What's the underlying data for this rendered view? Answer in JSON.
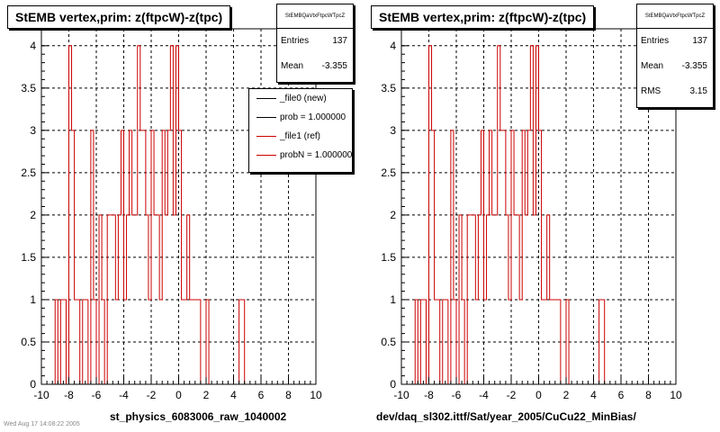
{
  "panels": [
    {
      "title": "StEMB  vertex,prim: z(ftpcW)-z(tpc)",
      "stats": {
        "name": "StEMBQaVtxFtpcWTpcZ",
        "entries_label": "Entries",
        "entries": "137",
        "mean_label": "Mean",
        "mean": "-3.355"
      },
      "legend": {
        "entries": [
          {
            "label": "_file0 (new)",
            "color": "#000000"
          },
          {
            "label": "prob = 1.000000",
            "color": "#000000"
          },
          {
            "label": "_file1 (ref)",
            "color": "#cc0000"
          },
          {
            "label": "probN = 1.000000",
            "color": "#cc0000"
          }
        ]
      },
      "xlabel": "st_physics_6083006_raw_1040002"
    },
    {
      "title": "StEMB  vertex,prim: z(ftpcW)-z(tpc)",
      "stats": {
        "name": "StEMBQaVtxFtpcWTpcZ",
        "entries_label": "Entries",
        "entries": "137",
        "mean_label": "Mean",
        "mean": "-3.355",
        "rms_label": "RMS",
        "rms": "3.15"
      },
      "xlabel": "dev/daq_sl302.ittf/Sat/year_2005/CuCu22_MinBias/"
    }
  ],
  "footer_scribble": "Wed Aug 17 14:08:22 2005",
  "chart_data": [
    {
      "type": "histogram",
      "title": "StEMB  vertex,prim: z(ftpcW)-z(tpc)",
      "xlabel": "st_physics_6083006_raw_1040002",
      "xlim": [
        -10,
        10
      ],
      "ylim": [
        0,
        4.2
      ],
      "x_ticks": [
        -10,
        -8,
        -6,
        -4,
        -2,
        0,
        2,
        4,
        6,
        8,
        10
      ],
      "y_ticks": [
        0,
        0.5,
        1,
        1.5,
        2,
        2.5,
        3,
        3.5,
        4
      ],
      "y_tick_labels": [
        "0",
        "0.5",
        "1",
        "1.5",
        "2",
        "2.5",
        "3",
        "3.5",
        "4"
      ],
      "grid": true,
      "bin_width": 0.2,
      "bin_starts": [
        -10.0,
        -9.8,
        -9.6,
        -9.4,
        -9.2,
        -9.0,
        -8.8,
        -8.6,
        -8.4,
        -8.2,
        -8.0,
        -7.8,
        -7.6,
        -7.4,
        -7.2,
        -7.0,
        -6.8,
        -6.6,
        -6.4,
        -6.2,
        -6.0,
        -5.8,
        -5.6,
        -5.4,
        -5.2,
        -5.0,
        -4.8,
        -4.6,
        -4.4,
        -4.2,
        -4.0,
        -3.8,
        -3.6,
        -3.4,
        -3.2,
        -3.0,
        -2.8,
        -2.6,
        -2.4,
        -2.2,
        -2.0,
        -1.8,
        -1.6,
        -1.4,
        -1.2,
        -1.0,
        -0.8,
        -0.6,
        -0.4,
        -0.2,
        0.0,
        0.2,
        0.4,
        0.6,
        0.8,
        1.0,
        1.2,
        1.4,
        1.6,
        1.8,
        2.0,
        2.2,
        2.4,
        2.6,
        2.8,
        3.0,
        3.2,
        3.4,
        3.6,
        3.8,
        4.0,
        4.2,
        4.4,
        4.6,
        4.8,
        5.0
      ],
      "series": [
        {
          "name": "_file1 (ref)",
          "color": "#cc0000",
          "values": [
            0,
            0,
            0,
            0,
            0,
            1,
            0,
            1,
            1,
            0,
            4,
            3,
            1,
            1,
            0,
            1,
            1,
            0,
            3,
            1,
            0,
            2,
            1,
            0,
            2,
            2,
            2,
            1,
            2,
            3,
            1,
            2,
            3,
            2,
            2,
            4,
            3,
            3,
            2,
            1,
            3,
            2,
            2,
            1,
            3,
            2,
            3,
            4,
            2,
            4,
            3,
            1,
            1,
            2,
            1,
            1,
            1,
            1,
            0,
            0,
            1,
            0,
            0,
            0,
            0,
            0,
            0,
            0,
            0,
            0,
            0,
            0,
            1,
            1,
            0,
            0
          ]
        }
      ]
    },
    {
      "type": "histogram",
      "title": "StEMB  vertex,prim: z(ftpcW)-z(tpc)",
      "xlabel": "dev/daq_sl302.ittf/Sat/year_2005/CuCu22_MinBias/",
      "xlim": [
        -10,
        10
      ],
      "ylim": [
        0,
        4.2
      ],
      "x_ticks": [
        -10,
        -8,
        -6,
        -4,
        -2,
        0,
        2,
        4,
        6,
        8,
        10
      ],
      "y_ticks": [
        0,
        0.5,
        1,
        1.5,
        2,
        2.5,
        3,
        3.5,
        4
      ],
      "y_tick_labels": [
        "0",
        "0.5",
        "1",
        "1.5",
        "2",
        "2.5",
        "3",
        "3.5",
        "4"
      ],
      "grid": true,
      "bin_width": 0.2,
      "bin_starts": [
        -10.0,
        -9.8,
        -9.6,
        -9.4,
        -9.2,
        -9.0,
        -8.8,
        -8.6,
        -8.4,
        -8.2,
        -8.0,
        -7.8,
        -7.6,
        -7.4,
        -7.2,
        -7.0,
        -6.8,
        -6.6,
        -6.4,
        -6.2,
        -6.0,
        -5.8,
        -5.6,
        -5.4,
        -5.2,
        -5.0,
        -4.8,
        -4.6,
        -4.4,
        -4.2,
        -4.0,
        -3.8,
        -3.6,
        -3.4,
        -3.2,
        -3.0,
        -2.8,
        -2.6,
        -2.4,
        -2.2,
        -2.0,
        -1.8,
        -1.6,
        -1.4,
        -1.2,
        -1.0,
        -0.8,
        -0.6,
        -0.4,
        -0.2,
        0.0,
        0.2,
        0.4,
        0.6,
        0.8,
        1.0,
        1.2,
        1.4,
        1.6,
        1.8,
        2.0,
        2.2,
        2.4,
        2.6,
        2.8,
        3.0,
        3.2,
        3.4,
        3.6,
        3.8,
        4.0,
        4.2,
        4.4,
        4.6,
        4.8,
        5.0
      ],
      "series": [
        {
          "color": "#cc0000",
          "values": [
            0,
            0,
            0,
            0,
            0,
            1,
            0,
            1,
            1,
            0,
            4,
            3,
            1,
            1,
            0,
            1,
            1,
            0,
            3,
            1,
            0,
            2,
            1,
            0,
            2,
            2,
            2,
            1,
            2,
            3,
            1,
            2,
            3,
            2,
            2,
            4,
            3,
            3,
            2,
            1,
            3,
            2,
            2,
            1,
            3,
            2,
            3,
            4,
            2,
            4,
            3,
            1,
            1,
            2,
            1,
            1,
            1,
            1,
            0,
            0,
            1,
            0,
            0,
            0,
            0,
            0,
            0,
            0,
            0,
            0,
            0,
            0,
            1,
            1,
            0,
            0
          ]
        }
      ]
    }
  ]
}
